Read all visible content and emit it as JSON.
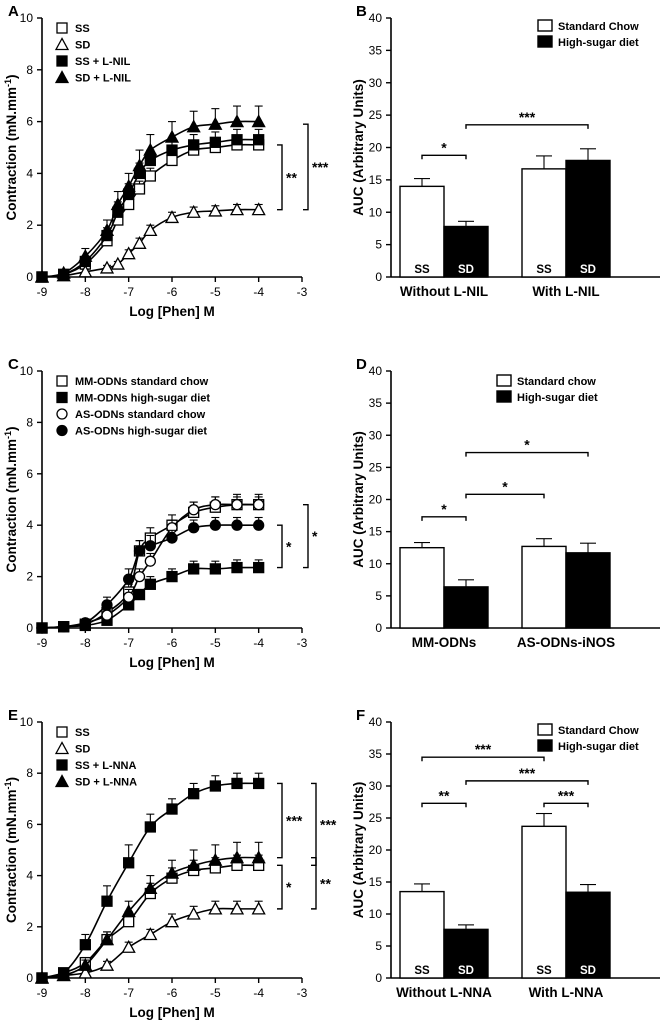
{
  "chart_data": [
    {
      "panel": "A",
      "type": "line",
      "xlabel": "Log [Phen] M",
      "ylabel": "Contraction (mN.mm",
      "ylabel_sup": "-1",
      "xlim": [
        -9,
        -3
      ],
      "ylim": [
        0,
        10
      ],
      "xticks": [
        -9,
        -8,
        -7,
        -6,
        -5,
        -4,
        -3
      ],
      "yticks": [
        0,
        2,
        4,
        6,
        8,
        10
      ],
      "x": [
        -9,
        -8.5,
        -8,
        -7.5,
        -7.25,
        -7,
        -6.75,
        -6.5,
        -6,
        -5.5,
        -5,
        -4.5,
        -4
      ],
      "series": [
        {
          "name": "SS",
          "marker": "open-square",
          "values": [
            0,
            0.1,
            0.5,
            1.4,
            2.2,
            2.8,
            3.4,
            3.9,
            4.5,
            4.9,
            5.0,
            5.1,
            5.1
          ],
          "errors": [
            0,
            0.1,
            0.2,
            0.3,
            0.3,
            0.3,
            0.3,
            0.3,
            0.3,
            0.3,
            0.3,
            0.3,
            0.3
          ]
        },
        {
          "name": "SD",
          "marker": "open-triangle",
          "values": [
            0,
            0.05,
            0.2,
            0.35,
            0.5,
            0.9,
            1.3,
            1.8,
            2.3,
            2.5,
            2.55,
            2.6,
            2.6
          ],
          "errors": [
            0,
            0.05,
            0.1,
            0.1,
            0.1,
            0.15,
            0.2,
            0.2,
            0.2,
            0.2,
            0.2,
            0.2,
            0.2
          ]
        },
        {
          "name": "SS + L-NIL",
          "marker": "filled-square",
          "values": [
            0,
            0.1,
            0.6,
            1.6,
            2.5,
            3.2,
            4.0,
            4.5,
            4.9,
            5.1,
            5.2,
            5.3,
            5.3
          ],
          "errors": [
            0,
            0.1,
            0.2,
            0.3,
            0.4,
            0.4,
            0.4,
            0.4,
            0.4,
            0.4,
            0.4,
            0.4,
            0.4
          ]
        },
        {
          "name": "SD + L-NIL",
          "marker": "filled-triangle",
          "values": [
            0,
            0.15,
            0.8,
            1.8,
            2.8,
            3.5,
            4.3,
            4.9,
            5.4,
            5.8,
            5.9,
            6.0,
            6.0
          ],
          "errors": [
            0,
            0.1,
            0.3,
            0.4,
            0.5,
            0.5,
            0.6,
            0.6,
            0.6,
            0.6,
            0.6,
            0.6,
            0.6
          ]
        }
      ],
      "significance": [
        {
          "label": "**",
          "from": 2.6,
          "to": 5.1
        },
        {
          "label": "***",
          "from": 2.6,
          "to": 5.9
        }
      ]
    },
    {
      "panel": "B",
      "type": "bar",
      "ylabel": "AUC (Arbitrary Units)",
      "ylim": [
        0,
        40
      ],
      "yticks": [
        0,
        5,
        10,
        15,
        20,
        25,
        30,
        35,
        40
      ],
      "groups": [
        "Without L-NIL",
        "With L-NIL"
      ],
      "bar_labels": [
        "SS",
        "SD"
      ],
      "series": [
        {
          "name": "Standard Chow",
          "fill": "#ffffff",
          "values": [
            14.0,
            16.7
          ],
          "errors": [
            1.2,
            2.0
          ]
        },
        {
          "name": "High-sugar diet",
          "fill": "#000000",
          "values": [
            7.8,
            18.0
          ],
          "errors": [
            0.8,
            1.8
          ]
        }
      ],
      "significance": [
        {
          "label": "*",
          "bars": [
            "Without L-NIL:SS",
            "Without L-NIL:SD"
          ],
          "y": 18.8
        },
        {
          "label": "***",
          "bars": [
            "Without L-NIL:SD",
            "With L-NIL:SD"
          ],
          "y": 23.5
        }
      ]
    },
    {
      "panel": "C",
      "type": "line",
      "xlabel": "Log [Phen] M",
      "ylabel": "Contraction (mN.mm",
      "ylabel_sup": "-1",
      "xlim": [
        -9,
        -3
      ],
      "ylim": [
        0,
        10
      ],
      "xticks": [
        -9,
        -8,
        -7,
        -6,
        -5,
        -4,
        -3
      ],
      "yticks": [
        0,
        2,
        4,
        6,
        8,
        10
      ],
      "x": [
        -9,
        -8.5,
        -8,
        -7.5,
        -7,
        -6.75,
        -6.5,
        -6,
        -5.5,
        -5,
        -4.5,
        -4
      ],
      "series": [
        {
          "name": "MM-ODNs standard chow",
          "marker": "open-square",
          "values": [
            0,
            0.05,
            0.15,
            0.6,
            1.4,
            3.0,
            3.5,
            4.0,
            4.5,
            4.7,
            4.8,
            4.8
          ],
          "errors": [
            0,
            0.05,
            0.1,
            0.2,
            0.3,
            0.4,
            0.4,
            0.4,
            0.4,
            0.4,
            0.4,
            0.4
          ]
        },
        {
          "name": "MM-ODNs high-sugar diet",
          "marker": "filled-square",
          "values": [
            0,
            0.05,
            0.1,
            0.3,
            0.9,
            1.3,
            1.7,
            2.0,
            2.3,
            2.3,
            2.35,
            2.35
          ],
          "errors": [
            0,
            0.05,
            0.1,
            0.1,
            0.2,
            0.2,
            0.3,
            0.3,
            0.3,
            0.3,
            0.3,
            0.3
          ]
        },
        {
          "name": "AS-ODNs standard chow",
          "marker": "open-circle",
          "values": [
            0,
            0.05,
            0.2,
            0.5,
            1.2,
            2.0,
            2.6,
            3.9,
            4.6,
            4.8,
            4.8,
            4.8
          ],
          "errors": [
            0,
            0.05,
            0.1,
            0.2,
            0.3,
            0.3,
            0.3,
            0.3,
            0.3,
            0.3,
            0.3,
            0.3
          ]
        },
        {
          "name": "AS-ODNs high-sugar diet",
          "marker": "filled-circle",
          "values": [
            0,
            0.05,
            0.2,
            0.9,
            1.9,
            3.0,
            3.2,
            3.5,
            3.9,
            4.0,
            4.0,
            4.0
          ],
          "errors": [
            0,
            0.05,
            0.1,
            0.3,
            0.4,
            0.4,
            0.4,
            0.3,
            0.3,
            0.3,
            0.3,
            0.3
          ]
        }
      ],
      "significance": [
        {
          "label": "*",
          "from": 2.35,
          "to": 4.0
        },
        {
          "label": "*",
          "from": 2.35,
          "to": 4.8
        }
      ]
    },
    {
      "panel": "D",
      "type": "bar",
      "ylabel": "AUC (Arbitrary Units)",
      "ylim": [
        0,
        40
      ],
      "yticks": [
        0,
        5,
        10,
        15,
        20,
        25,
        30,
        35,
        40
      ],
      "groups": [
        "MM-ODNs",
        "AS-ODNs-iNOS"
      ],
      "bar_labels": [],
      "series": [
        {
          "name": "Standard chow",
          "fill": "#ffffff",
          "values": [
            12.5,
            12.7
          ],
          "errors": [
            0.8,
            1.2
          ]
        },
        {
          "name": "High-sugar diet",
          "fill": "#000000",
          "values": [
            6.4,
            11.7
          ],
          "errors": [
            1.1,
            1.5
          ]
        }
      ],
      "significance": [
        {
          "label": "*",
          "bars": [
            "MM-ODNs:SS",
            "MM-ODNs:SD"
          ],
          "y": 17.3
        },
        {
          "label": "*",
          "bars": [
            "MM-ODNs:SD",
            "AS-ODNs-iNOS:SS"
          ],
          "y": 20.8
        },
        {
          "label": "*",
          "bars": [
            "MM-ODNs:SD",
            "AS-ODNs-iNOS:SD"
          ],
          "y": 27.3
        }
      ]
    },
    {
      "panel": "E",
      "type": "line",
      "xlabel": "Log [Phen] M",
      "ylabel": "Contraction (mN.mm",
      "ylabel_sup": "-1",
      "xlim": [
        -9,
        -3
      ],
      "ylim": [
        0,
        10
      ],
      "xticks": [
        -9,
        -8,
        -7,
        -6,
        -5,
        -4,
        -3
      ],
      "yticks": [
        0,
        2,
        4,
        6,
        8,
        10
      ],
      "x": [
        -9,
        -8.5,
        -8,
        -7.5,
        -7,
        -6.5,
        -6,
        -5.5,
        -5,
        -4.5,
        -4
      ],
      "series": [
        {
          "name": "SS",
          "marker": "open-square",
          "values": [
            0,
            0.2,
            0.6,
            1.5,
            2.2,
            3.3,
            3.9,
            4.2,
            4.3,
            4.4,
            4.4
          ],
          "errors": [
            0,
            0.1,
            0.2,
            0.3,
            0.4,
            0.4,
            0.4,
            0.4,
            0.4,
            0.4,
            0.4
          ]
        },
        {
          "name": "SD",
          "marker": "open-triangle",
          "values": [
            0,
            0.1,
            0.2,
            0.5,
            1.2,
            1.7,
            2.2,
            2.5,
            2.7,
            2.7,
            2.7
          ],
          "errors": [
            0,
            0.05,
            0.1,
            0.15,
            0.2,
            0.2,
            0.3,
            0.3,
            0.3,
            0.3,
            0.3
          ]
        },
        {
          "name": "SS + L-NNA",
          "marker": "filled-square",
          "values": [
            0,
            0.2,
            1.3,
            3.0,
            4.5,
            5.9,
            6.6,
            7.2,
            7.5,
            7.6,
            7.6
          ],
          "errors": [
            0,
            0.1,
            0.4,
            0.6,
            0.7,
            0.5,
            0.4,
            0.4,
            0.4,
            0.4,
            0.4
          ]
        },
        {
          "name": "SD + L-NNA",
          "marker": "filled-triangle",
          "values": [
            0,
            0.1,
            0.5,
            1.5,
            2.6,
            3.5,
            4.1,
            4.4,
            4.6,
            4.7,
            4.7
          ],
          "errors": [
            0,
            0.1,
            0.2,
            0.3,
            0.4,
            0.5,
            0.5,
            0.6,
            0.6,
            0.6,
            0.6
          ]
        }
      ],
      "significance": [
        {
          "label": "***",
          "from": 4.7,
          "to": 7.6
        },
        {
          "label": "***",
          "from": 4.4,
          "to": 7.6
        },
        {
          "label": "*",
          "from": 2.7,
          "to": 4.4
        },
        {
          "label": "**",
          "from": 2.7,
          "to": 4.7
        }
      ]
    },
    {
      "panel": "F",
      "type": "bar",
      "ylabel": "AUC (Arbitrary Units)",
      "ylim": [
        0,
        40
      ],
      "yticks": [
        0,
        5,
        10,
        15,
        20,
        25,
        30,
        35,
        40
      ],
      "groups": [
        "Without L-NNA",
        "With L-NNA"
      ],
      "bar_labels": [
        "SS",
        "SD"
      ],
      "series": [
        {
          "name": "Standard Chow",
          "fill": "#ffffff",
          "values": [
            13.5,
            23.7
          ],
          "errors": [
            1.2,
            2.0
          ]
        },
        {
          "name": "High-sugar diet",
          "fill": "#000000",
          "values": [
            7.6,
            13.4
          ],
          "errors": [
            0.7,
            1.2
          ]
        }
      ],
      "significance": [
        {
          "label": "**",
          "bars": [
            "Without L-NNA:SS",
            "Without L-NNA:SD"
          ],
          "y": 27.3
        },
        {
          "label": "***",
          "bars": [
            "Without L-NNA:SS",
            "With L-NNA:SS"
          ],
          "y": 34.5
        },
        {
          "label": "***",
          "bars": [
            "Without L-NNA:SD",
            "With L-NNA:SD"
          ],
          "y": 30.8
        },
        {
          "label": "***",
          "bars": [
            "With L-NNA:SS",
            "With L-NNA:SD"
          ],
          "y": 27.3
        }
      ]
    }
  ]
}
